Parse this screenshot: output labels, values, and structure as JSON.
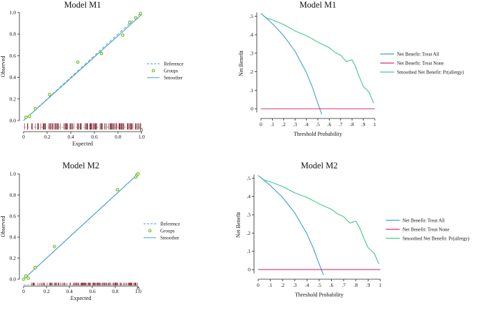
{
  "colors": {
    "line_blue": "#3f9ad6",
    "none_red": "#d2306a",
    "smooth_green": "#3cc98a",
    "group_green": "#4aa84a",
    "rug": "#8b2d36"
  },
  "chart_data": [
    {
      "type": "scatter",
      "panel": "calibration",
      "title": "Model M1",
      "xlabel": "Expected",
      "ylabel": "Observed",
      "xlim": [
        0,
        1
      ],
      "ylim": [
        0,
        1
      ],
      "xticks": [
        "0",
        "0.2",
        "0.4",
        "0.6",
        "0.8",
        "1.0"
      ],
      "yticks": [
        "0.0",
        "0.2",
        "0.4",
        "0.6",
        "0.8",
        "1.0"
      ],
      "rug_label_0": "0",
      "legend": [
        "Reference",
        "Groups",
        "Smoother"
      ],
      "groups": [
        [
          0.02,
          0.03
        ],
        [
          0.05,
          0.04
        ],
        [
          0.1,
          0.11
        ],
        [
          0.22,
          0.24
        ],
        [
          0.46,
          0.54
        ],
        [
          0.66,
          0.62
        ],
        [
          0.84,
          0.79
        ],
        [
          0.9,
          0.91
        ],
        [
          0.95,
          0.95
        ],
        [
          0.99,
          0.99
        ]
      ],
      "smoother": [
        [
          0.0,
          0.0
        ],
        [
          1.0,
          0.98
        ]
      ]
    },
    {
      "type": "line",
      "panel": "decision",
      "title": "Model M1",
      "xlabel": "Threshold Probability",
      "ylabel": "Net Benefit",
      "xlim": [
        0,
        1
      ],
      "ylim": [
        -0.03,
        0.52
      ],
      "xticks": [
        "0",
        ".1",
        ".2",
        ".3",
        ".4",
        ".5",
        ".6",
        ".7",
        ".8",
        ".9",
        "1"
      ],
      "yticks": [
        "0",
        ".1",
        ".2",
        ".3",
        ".4",
        ".5"
      ],
      "legend": [
        "Net Benefit: Treat All",
        "Net Benefit: Treat None",
        "Smoothed Net Benefit: Pr(allergy)"
      ],
      "series": [
        {
          "name": "Net Benefit: Treat All",
          "x": [
            0,
            0.1,
            0.2,
            0.3,
            0.4,
            0.45,
            0.5,
            0.535
          ],
          "y": [
            0.515,
            0.46,
            0.395,
            0.31,
            0.195,
            0.12,
            0.03,
            -0.03
          ]
        },
        {
          "name": "Net Benefit: Treat None",
          "x": [
            0,
            1
          ],
          "y": [
            0,
            0
          ]
        },
        {
          "name": "Smoothed Net Benefit: Pr(allergy)",
          "x": [
            0,
            0.05,
            0.1,
            0.2,
            0.3,
            0.4,
            0.5,
            0.6,
            0.65,
            0.7,
            0.75,
            0.8,
            0.83,
            0.86,
            0.9,
            0.95,
            0.99
          ],
          "y": [
            0.515,
            0.49,
            0.48,
            0.455,
            0.42,
            0.395,
            0.36,
            0.33,
            0.305,
            0.29,
            0.255,
            0.265,
            0.23,
            0.18,
            0.12,
            0.09,
            0.03
          ]
        }
      ]
    },
    {
      "type": "scatter",
      "panel": "calibration",
      "title": "Model M2",
      "xlabel": "Expected",
      "ylabel": "Observed",
      "xlim": [
        0,
        1
      ],
      "ylim": [
        0,
        1
      ],
      "xticks": [
        "0",
        "0.2",
        "0.4",
        "0.6",
        "0.8",
        "1.0"
      ],
      "yticks": [
        "0.0",
        "0.2",
        "0.4",
        "0.6",
        "0.8",
        "1.0"
      ],
      "rug_label_0": "0",
      "legend": [
        "Reference",
        "Groups",
        "Smoother"
      ],
      "groups": [
        [
          0.0,
          0.0
        ],
        [
          0.02,
          0.03
        ],
        [
          0.04,
          0.01
        ],
        [
          0.1,
          0.11
        ],
        [
          0.27,
          0.31
        ],
        [
          0.82,
          0.85
        ],
        [
          0.98,
          0.97
        ],
        [
          0.99,
          0.99
        ],
        [
          1.0,
          1.0
        ]
      ],
      "smoother": [
        [
          0.0,
          0.0
        ],
        [
          1.0,
          1.0
        ]
      ]
    },
    {
      "type": "line",
      "panel": "decision",
      "title": "Model M2",
      "xlabel": "Threshold Probability",
      "ylabel": "Net Benefit",
      "xlim": [
        0,
        1
      ],
      "ylim": [
        -0.03,
        0.52
      ],
      "xticks": [
        "0",
        ".1",
        ".2",
        ".3",
        ".4",
        ".5",
        ".6",
        ".7",
        ".8",
        ".9",
        "1"
      ],
      "yticks": [
        "0",
        ".1",
        ".2",
        ".3",
        ".4",
        ".5"
      ],
      "legend": [
        "Net Benefit: Treat All",
        "Net Benefit: Treat None",
        "Smoothed Net Benefit: Pr(allergy)"
      ],
      "series": [
        {
          "name": "Net Benefit: Treat All",
          "x": [
            0,
            0.1,
            0.2,
            0.3,
            0.4,
            0.45,
            0.5,
            0.535
          ],
          "y": [
            0.515,
            0.46,
            0.395,
            0.31,
            0.195,
            0.12,
            0.03,
            -0.03
          ]
        },
        {
          "name": "Net Benefit: Treat None",
          "x": [
            0,
            1
          ],
          "y": [
            0,
            0
          ]
        },
        {
          "name": "Smoothed Net Benefit: Pr(allergy)",
          "x": [
            0,
            0.05,
            0.1,
            0.2,
            0.3,
            0.4,
            0.5,
            0.6,
            0.65,
            0.7,
            0.75,
            0.8,
            0.83,
            0.86,
            0.9,
            0.95,
            0.99
          ],
          "y": [
            0.515,
            0.49,
            0.48,
            0.455,
            0.42,
            0.395,
            0.36,
            0.33,
            0.305,
            0.29,
            0.255,
            0.265,
            0.23,
            0.18,
            0.12,
            0.09,
            0.03
          ]
        }
      ]
    }
  ]
}
